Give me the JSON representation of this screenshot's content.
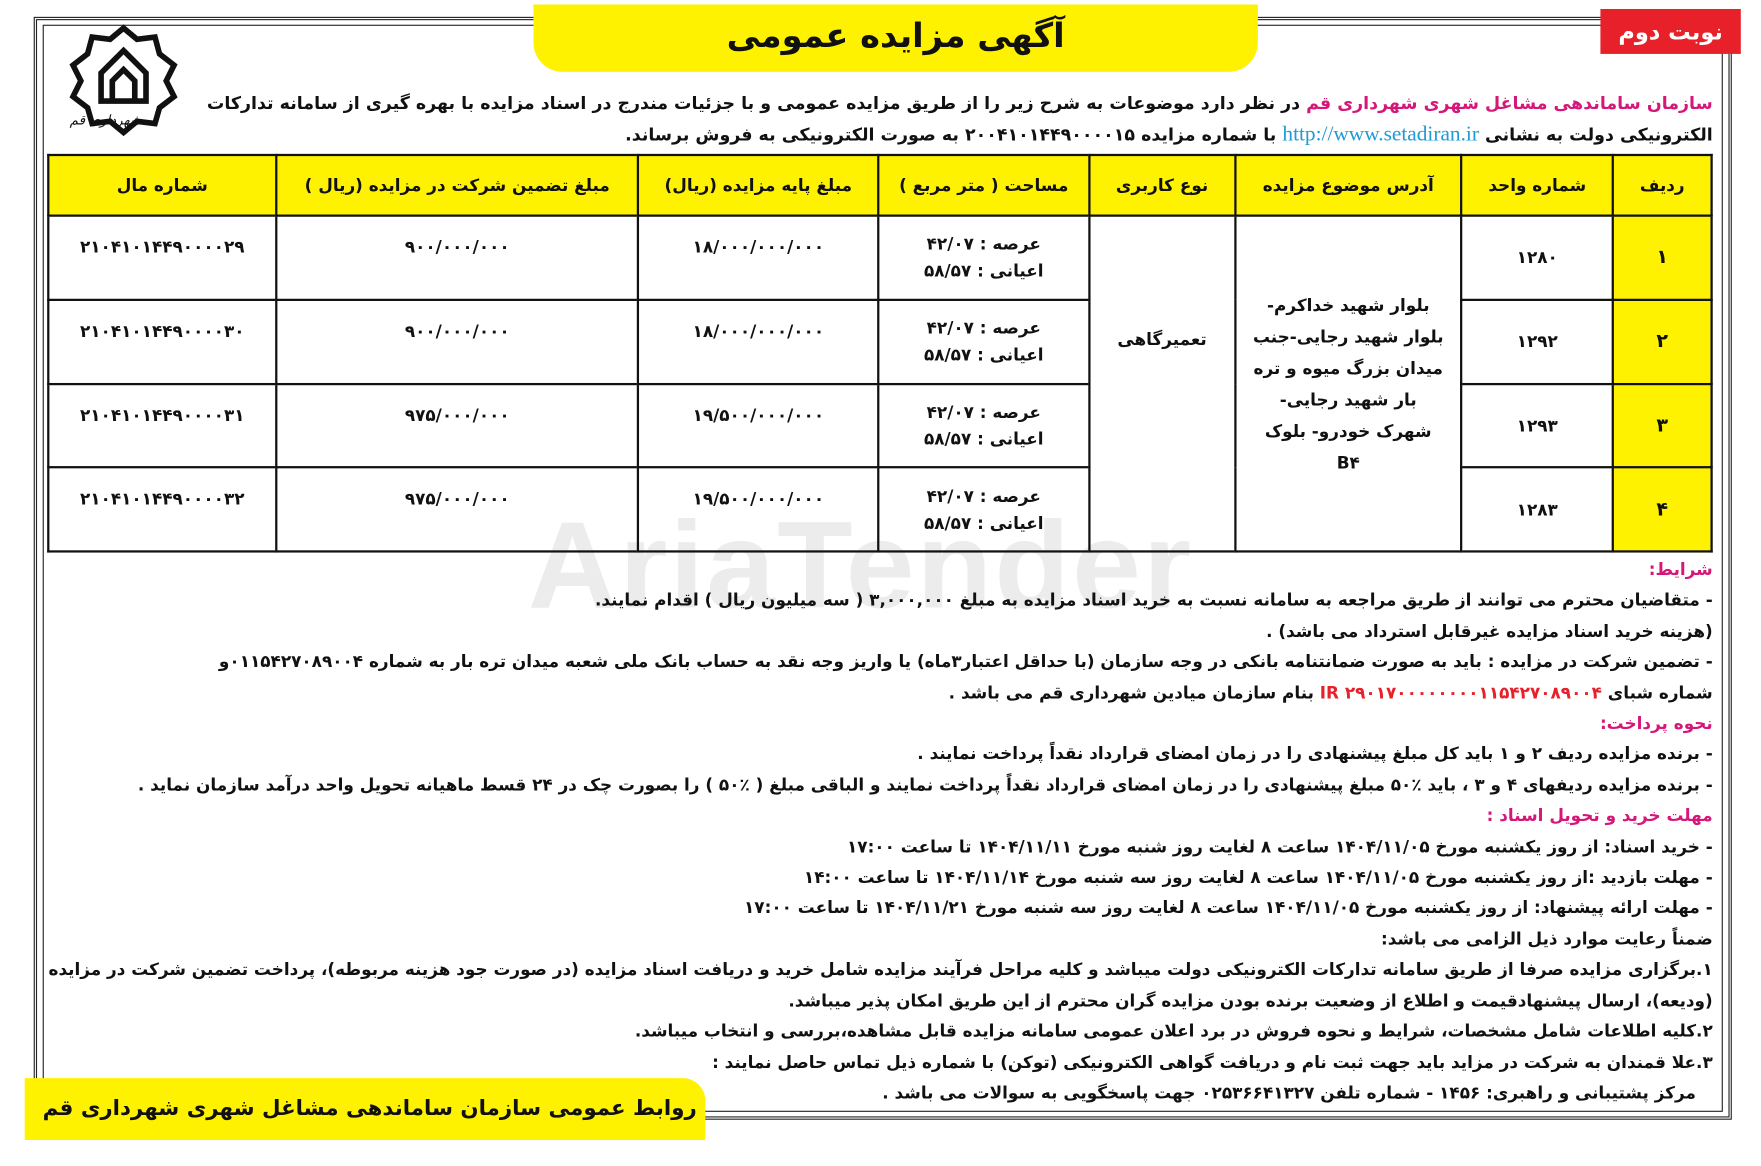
{
  "badge": "نوبت دوم",
  "title": "آگهی مزایده عمومی",
  "logo_text": "شهرداری قم",
  "watermark": "AriaTender",
  "intro": {
    "org": "سازمان ساماندهی مشاغل شهری شهرداری قم",
    "text1": " در نظر دارد موضوعات به شرح زیر را از طریق مزایده عمومی و با جزئیات مندرج در اسناد مزایده با بهره گیری از سامانه تدارکات الکترونیکی دولت به نشانی ",
    "link": "http://www.setadiran.ir",
    "text2": " با شماره مزایده ۲۰۰۴۱۰۱۴۴۹۰۰۰۰۱۵ به صورت الکترونیکی به فروش برساند."
  },
  "table": {
    "headers": [
      "ردیف",
      "شماره واحد",
      "آدرس موضوع مزایده",
      "نوع کاربری",
      "مساحت ( متر مربع )",
      "مبلغ پایه مزایده (ریال)",
      "مبلغ تضمین شرکت در مزایده (ریال )",
      "شماره مال"
    ],
    "address": "بلوار شهید خداکرم- بلوار شهید رجایی-جنب میدان بزرگ میوه و تره بار شهید رجایی- شهرک خودرو- بلوک B۴",
    "usage": "تعمیرگاهی",
    "rows": [
      {
        "n": "۱",
        "unit": "۱۲۸۰",
        "arsa": "عرصه : ۴۲/۰۷",
        "ayani": "اعیانی : ۵۸/۵۷",
        "base": "۱۸/۰۰۰/۰۰۰/۰۰۰",
        "deposit": "۹۰۰/۰۰۰/۰۰۰",
        "asset": "۲۱۰۴۱۰۱۴۴۹۰۰۰۰۲۹"
      },
      {
        "n": "۲",
        "unit": "۱۲۹۲",
        "arsa": "عرصه : ۴۲/۰۷",
        "ayani": "اعیانی : ۵۸/۵۷",
        "base": "۱۸/۰۰۰/۰۰۰/۰۰۰",
        "deposit": "۹۰۰/۰۰۰/۰۰۰",
        "asset": "۲۱۰۴۱۰۱۴۴۹۰۰۰۰۳۰"
      },
      {
        "n": "۳",
        "unit": "۱۲۹۳",
        "arsa": "عرصه : ۴۲/۰۷",
        "ayani": "اعیانی : ۵۸/۵۷",
        "base": "۱۹/۵۰۰/۰۰۰/۰۰۰",
        "deposit": "۹۷۵/۰۰۰/۰۰۰",
        "asset": "۲۱۰۴۱۰۱۴۴۹۰۰۰۰۳۱"
      },
      {
        "n": "۴",
        "unit": "۱۲۸۳",
        "arsa": "عرصه : ۴۲/۰۷",
        "ayani": "اعیانی : ۵۸/۵۷",
        "base": "۱۹/۵۰۰/۰۰۰/۰۰۰",
        "deposit": "۹۷۵/۰۰۰/۰۰۰",
        "asset": "۲۱۰۴۱۰۱۴۴۹۰۰۰۰۳۲"
      }
    ]
  },
  "conditions": {
    "heading": "شرایط:",
    "l1": "- متقاضیان محترم می توانند از طریق مراجعه به سامانه نسبت به خرید اسناد مزایده به مبلغ ۳,۰۰۰,۰۰۰ ( سه میلیون ریال ) اقدام نمایند.",
    "l2": "(هزینه خرید اسناد مزایده غیرقابل استرداد می باشد) .",
    "l3": "- تضمین شرکت در مزایده : باید به صورت ضمانتنامه بانکی در وجه سازمان (با حداقل اعتبار۳ماه) یا واریز وجه نقد به حساب بانک ملی شعبه میدان تره بار به شماره ۰۱۱۵۴۲۷۰۸۹۰۰۴و",
    "l4a": "شماره شبای ",
    "sheba": "IR ۲۹۰۱۷۰۰۰۰۰۰۰۰۱۱۵۴۲۷۰۸۹۰۰۴",
    "l4b": " بنام سازمان میادین شهرداری قم می باشد ."
  },
  "payment": {
    "heading": "نحوه پرداخت:",
    "l1": "- برنده مزایده ردیف ۲ و ۱ باید کل مبلغ پیشنهادی را در زمان امضای قرارداد نقداً پرداخت نمایند .",
    "l2": "- برنده مزایده ردیفهای ۴ و ۳ ، باید ٪۵۰ مبلغ پیشنهادی را در زمان امضای قرارداد نقداً پرداخت نمایند و الباقی مبلغ ( ٪۵۰ ) را بصورت چک در ۲۴ قسط ماهیانه تحویل واحد درآمد سازمان نماید ."
  },
  "deadlines": {
    "heading": "مهلت خرید و تحویل اسناد :",
    "l1": "- خرید اسناد: از روز یکشنبه مورخ ۱۴۰۴/۱۱/۰۵ ساعت ۸ لغایت روز شنبه مورخ ۱۴۰۴/۱۱/۱۱ تا ساعت ۱۷:۰۰",
    "l2": "- مهلت بازدید :از روز یکشنبه مورخ ۱۴۰۴/۱۱/۰۵ ساعت ۸ لغایت روز سه شنبه مورخ ۱۴۰۴/۱۱/۱۴ تا ساعت ۱۴:۰۰",
    "l3": "- مهلت ارائه پیشنهاد: از روز یکشنبه مورخ ۱۴۰۴/۱۱/۰۵ ساعت ۸ لغایت روز سه شنبه مورخ ۱۴۰۴/۱۱/۲۱ تا ساعت ۱۷:۰۰"
  },
  "notes": {
    "heading": "ضمناً رعایت موارد ذیل الزامی می باشد:",
    "l1": "۱.برگزاری مزایده صرفا از طریق سامانه تدارکات الکترونیکی دولت میباشد و کلیه مراحل فرآیند مزایده شامل خرید و دریافت اسناد مزایده (در صورت جود هزینه مربوطه)، پرداخت تضمین شرکت در مزایده (ودیعه)، ارسال پیشنهادقیمت و اطلاع از وضعیت برنده بودن مزایده گران محترم از این طریق امکان پذیر میباشد.",
    "l2": "۲.کلیه اطلاعات شامل مشخصات، شرایط و نحوه فروش در برد اعلان عمومی سامانه مزایده قابل مشاهده،بررسی و انتخاب میباشد.",
    "l3": "۳.علا قمندان به شرکت در مزاید باید جهت ثبت نام و دریافت گواهی الکترونیکی (توکن) با شماره ذیل تماس حاصل نمایند :",
    "l4": "مرکز پشتیبانی و راهبری: ۱۴۵۶ - شماره تلفن ۰۲۵۳۶۶۴۱۳۲۷ جهت پاسخگویی به سوالات می باشد ."
  },
  "footer": "روابط عمومی سازمان ساماندهی مشاغل شهری شهرداری قم",
  "colors": {
    "yellow": "#fff200",
    "red": "#e8202a",
    "pink": "#d6177a",
    "link": "#1f9ad6"
  }
}
